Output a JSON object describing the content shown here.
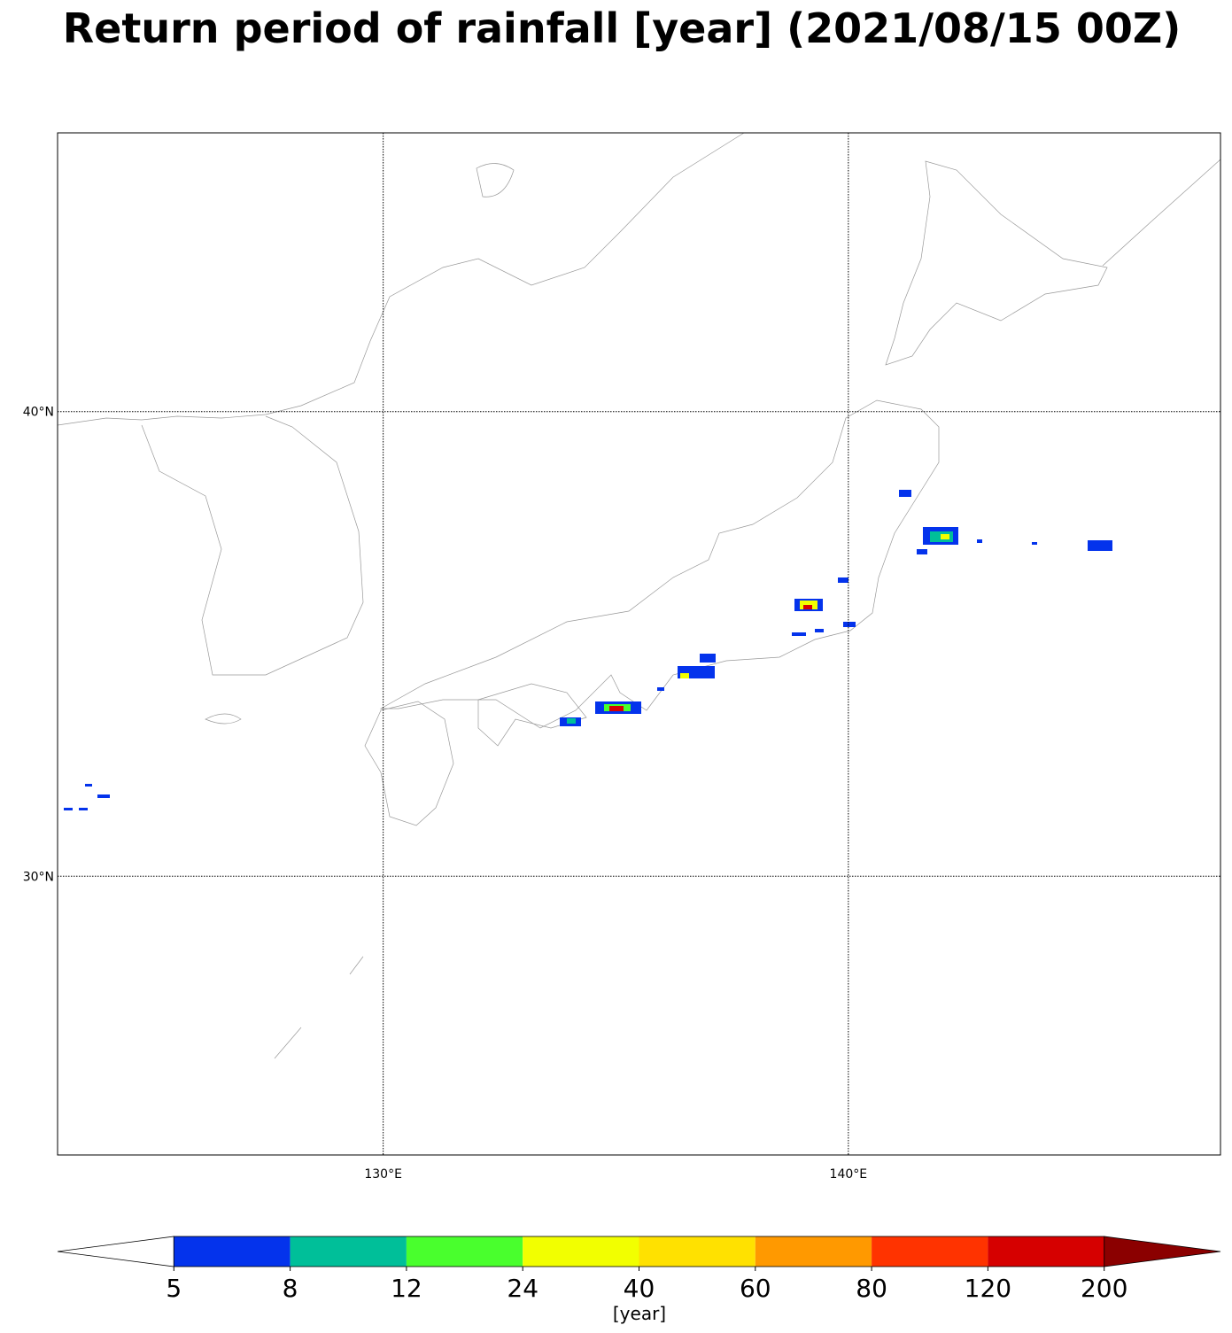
{
  "title": "Return period of rainfall [year] (2021/08/15 00Z)",
  "map": {
    "xlim": [
      123,
      148
    ],
    "ylim": [
      24,
      46
    ],
    "xticks": [
      {
        "value": 130,
        "label": "130°E"
      },
      {
        "value": 140,
        "label": "140°E"
      }
    ],
    "yticks": [
      {
        "value": 40,
        "label": "40°N"
      },
      {
        "value": 30,
        "label": "30°N"
      }
    ]
  },
  "colorbar": {
    "levels": [
      5,
      8,
      12,
      24,
      40,
      60,
      80,
      120,
      200
    ],
    "colors": [
      "#0433ec",
      "#00bf99",
      "#49ff2d",
      "#f2ff00",
      "#ffe100",
      "#ff9900",
      "#ff3300",
      "#d60000"
    ],
    "under_color": "#ffffff",
    "over_color": "#8b0000",
    "label": "[year]"
  }
}
